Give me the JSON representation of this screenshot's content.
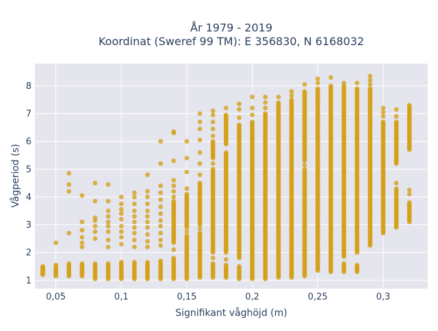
{
  "chart_data": {
    "type": "scatter",
    "title_lines": [
      "År 1979 - 2019",
      "Koordinat (Sweref 99 TM): E 356830, N 6168032"
    ],
    "xlabel": "Signifikant våghöjd (m)",
    "ylabel": "Vågperiod (s)",
    "xlim": [
      0.034,
      0.334
    ],
    "ylim": [
      0.7,
      8.8
    ],
    "x_ticks": [
      0.05,
      0.1,
      0.15,
      0.2,
      0.25,
      0.3
    ],
    "x_tick_labels": [
      "0,05",
      "0,1",
      "0,15",
      "0,2",
      "0,25",
      "0,3"
    ],
    "y_ticks": [
      1,
      2,
      3,
      4,
      5,
      6,
      7,
      8
    ],
    "y_tick_labels": [
      "1",
      "2",
      "3",
      "4",
      "5",
      "6",
      "7",
      "8"
    ],
    "plot_background": "#e5e5ee",
    "grid": true,
    "marker_color": "#d4a017",
    "columns": [
      {
        "x": 0.04,
        "dense": [
          [
            1.2,
            1.5
          ]
        ],
        "points": [
          1.25,
          1.32,
          1.4,
          1.47
        ]
      },
      {
        "x": 0.05,
        "dense": [
          [
            1.15,
            1.55
          ]
        ],
        "points": [
          2.35
        ]
      },
      {
        "x": 0.06,
        "dense": [
          [
            1.15,
            1.6
          ]
        ],
        "points": [
          2.7,
          4.2,
          4.45,
          4.85
        ]
      },
      {
        "x": 0.07,
        "dense": [
          [
            1.15,
            1.6
          ]
        ],
        "points": [
          2.2,
          2.35,
          2.55,
          2.8,
          3.1,
          4.05
        ]
      },
      {
        "x": 0.08,
        "dense": [
          [
            1.05,
            1.6
          ]
        ],
        "points": [
          2.5,
          2.75,
          2.95,
          3.15,
          3.25,
          3.85,
          4.5
        ]
      },
      {
        "x": 0.09,
        "dense": [
          [
            1.05,
            1.6
          ]
        ],
        "points": [
          2.2,
          2.45,
          2.75,
          2.95,
          3.1,
          3.3,
          3.5,
          3.85,
          4.45
        ]
      },
      {
        "x": 0.1,
        "dense": [
          [
            1.05,
            1.65
          ]
        ],
        "points": [
          2.3,
          2.55,
          2.75,
          2.95,
          3.2,
          3.4,
          3.55,
          3.75,
          4.0
        ]
      },
      {
        "x": 0.11,
        "dense": [
          [
            1.05,
            1.65
          ]
        ],
        "points": [
          2.2,
          2.45,
          2.7,
          2.9,
          3.1,
          3.3,
          3.5,
          3.75,
          4.0,
          4.15
        ]
      },
      {
        "x": 0.12,
        "dense": [
          [
            1.05,
            1.65
          ]
        ],
        "points": [
          2.2,
          2.4,
          2.65,
          2.9,
          3.1,
          3.3,
          3.5,
          3.75,
          4.0,
          4.2,
          4.8
        ]
      },
      {
        "x": 0.13,
        "dense": [
          [
            1.05,
            1.7
          ]
        ],
        "points": [
          2.25,
          2.45,
          2.7,
          2.95,
          3.15,
          3.4,
          3.65,
          3.9,
          4.15,
          4.4,
          5.2,
          6.0
        ]
      },
      {
        "x": 0.14,
        "dense": [
          [
            1.05,
            1.8
          ],
          [
            2.35,
            3.85
          ]
        ],
        "points": [
          2.1,
          4.0,
          4.2,
          4.4,
          4.6,
          5.3,
          6.3,
          6.35
        ]
      },
      {
        "x": 0.15,
        "dense": [
          [
            1.05,
            2.6
          ],
          [
            2.9,
            4.1
          ]
        ],
        "points": [
          2.75,
          4.3,
          4.9,
          5.4,
          6.0
        ]
      },
      {
        "x": 0.16,
        "dense": [
          [
            1.1,
            2.7
          ],
          [
            3.0,
            4.5
          ]
        ],
        "points": [
          2.85,
          4.8,
          5.2,
          5.6,
          6.05,
          6.45,
          6.7,
          7.0
        ]
      },
      {
        "x": 0.17,
        "dense": [
          [
            1.1,
            1.6
          ],
          [
            2.0,
            5.0
          ],
          [
            5.4,
            6.0
          ]
        ],
        "points": [
          1.8,
          5.2,
          6.2,
          6.45,
          6.7,
          6.95,
          7.1
        ]
      },
      {
        "x": 0.18,
        "dense": [
          [
            1.1,
            1.55
          ],
          [
            2.0,
            5.6
          ],
          [
            5.9,
            6.95
          ]
        ],
        "points": [
          1.75,
          7.2
        ]
      },
      {
        "x": 0.19,
        "dense": [
          [
            1.05,
            1.5
          ],
          [
            1.8,
            6.6
          ]
        ],
        "points": [
          6.85,
          7.15,
          7.35
        ]
      },
      {
        "x": 0.2,
        "dense": [
          [
            1.05,
            6.7
          ]
        ],
        "points": [
          6.95,
          7.2,
          7.6
        ]
      },
      {
        "x": 0.21,
        "dense": [
          [
            1.05,
            7.0
          ]
        ],
        "points": [
          7.2,
          7.4,
          7.6
        ]
      },
      {
        "x": 0.22,
        "dense": [
          [
            1.1,
            7.4
          ]
        ],
        "points": [
          7.6
        ]
      },
      {
        "x": 0.23,
        "dense": [
          [
            1.1,
            7.5
          ]
        ],
        "points": [
          7.65,
          7.8
        ]
      },
      {
        "x": 0.24,
        "dense": [
          [
            1.15,
            5.0
          ],
          [
            5.3,
            7.8
          ]
        ],
        "points": [
          5.15,
          8.05
        ]
      },
      {
        "x": 0.25,
        "dense": [
          [
            1.35,
            7.9
          ]
        ],
        "points": [
          8.1,
          8.25
        ]
      },
      {
        "x": 0.26,
        "dense": [
          [
            1.3,
            8.0
          ]
        ],
        "points": [
          8.3
        ]
      },
      {
        "x": 0.27,
        "dense": [
          [
            1.3,
            1.6
          ],
          [
            1.85,
            8.0
          ]
        ],
        "points": [
          8.1
        ]
      },
      {
        "x": 0.28,
        "dense": [
          [
            1.3,
            1.55
          ],
          [
            2.0,
            7.9
          ]
        ],
        "points": [
          8.1
        ]
      },
      {
        "x": 0.29,
        "dense": [
          [
            2.25,
            7.9
          ]
        ],
        "points": [
          8.05,
          8.2,
          8.35
        ]
      },
      {
        "x": 0.3,
        "dense": [
          [
            2.7,
            6.7
          ]
        ],
        "points": [
          6.9,
          7.05,
          7.2
        ]
      },
      {
        "x": 0.31,
        "dense": [
          [
            2.9,
            4.3
          ],
          [
            5.2,
            6.7
          ]
        ],
        "points": [
          4.5,
          6.9,
          7.15
        ]
      },
      {
        "x": 0.32,
        "dense": [
          [
            3.1,
            3.8
          ],
          [
            5.7,
            7.3
          ]
        ],
        "points": [
          4.1,
          4.25
        ]
      }
    ]
  }
}
